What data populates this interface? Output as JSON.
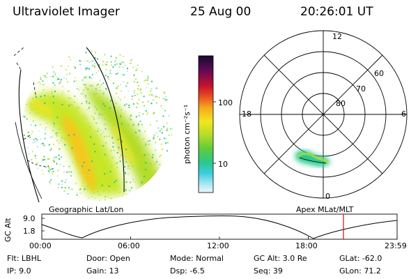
{
  "header": {
    "instrument": "Ultraviolet Imager",
    "date": "25 Aug 00",
    "time": "20:26:01 UT"
  },
  "colorbar": {
    "unit_label": "photon cm⁻²s⁻¹",
    "tick_labels": [
      "100",
      "10"
    ],
    "colors": [
      "#1a0a30",
      "#5a0a55",
      "#8c0a3c",
      "#c8102e",
      "#e8501e",
      "#f5a81e",
      "#f0e61e",
      "#b4dc28",
      "#5fcc3c",
      "#28c88c",
      "#3ccce0",
      "#a0e4f0",
      "#e8f6fa"
    ]
  },
  "polar_plot": {
    "mlt_labels": [
      "12",
      "18",
      "6",
      "0"
    ],
    "lat_labels": [
      "60",
      "70",
      "80"
    ]
  },
  "panels": {
    "left_title": "Geographic Lat/Lon",
    "right_title": "Apex MLat/MLT"
  },
  "altitude_plot": {
    "ylabel": "GC Alt",
    "y_ticks": [
      "9.0",
      "1.8"
    ],
    "x_ticks": [
      "00:00",
      "06:00",
      "12:00",
      "18:00",
      "23:59"
    ],
    "marker_color": "#d01010"
  },
  "info": {
    "flt": "Flt: LBHL",
    "ip": "IP:  9.0",
    "door": "Door: Open",
    "gain": "Gain: 13",
    "mode": "Mode: Normal",
    "dsp": "Dsp:     -6.5",
    "gcalt": "GC Alt: 3.0 Re",
    "seq": "Seq: 39",
    "glat": "GLat: -62.0",
    "glon": "GLon:  71.2"
  }
}
